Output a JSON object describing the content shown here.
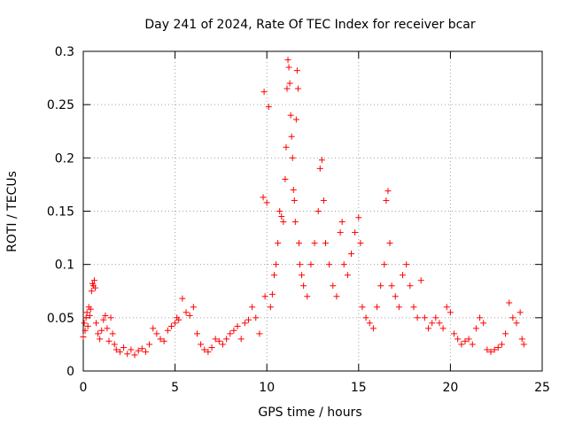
{
  "chart_data": {
    "type": "scatter",
    "title": "Day 241 of 2024, Rate Of TEC Index for receiver bcar",
    "xlabel": "GPS time / hours",
    "ylabel": "ROTI / TECUs",
    "xlim": [
      0,
      25
    ],
    "ylim": [
      0,
      0.3
    ],
    "xticks": [
      0,
      5,
      10,
      15,
      20,
      25
    ],
    "xtick_labels": [
      "0",
      "5",
      "10",
      "15",
      "20",
      "25"
    ],
    "yticks": [
      0,
      0.05,
      0.1,
      0.15,
      0.2,
      0.25,
      0.3
    ],
    "ytick_labels": [
      "0",
      "0.05",
      "0.1",
      "0.15",
      "0.2",
      "0.25",
      "0.3"
    ],
    "grid": true,
    "marker": "+",
    "color": "#ff0000",
    "series": [
      {
        "name": "ROTI",
        "points": [
          [
            0.0,
            0.032
          ],
          [
            0.05,
            0.045
          ],
          [
            0.1,
            0.038
          ],
          [
            0.15,
            0.05
          ],
          [
            0.2,
            0.055
          ],
          [
            0.25,
            0.042
          ],
          [
            0.3,
            0.06
          ],
          [
            0.35,
            0.052
          ],
          [
            0.4,
            0.058
          ],
          [
            0.45,
            0.075
          ],
          [
            0.5,
            0.082
          ],
          [
            0.55,
            0.08
          ],
          [
            0.6,
            0.085
          ],
          [
            0.65,
            0.078
          ],
          [
            0.7,
            0.045
          ],
          [
            0.8,
            0.035
          ],
          [
            0.9,
            0.03
          ],
          [
            1.0,
            0.038
          ],
          [
            1.1,
            0.048
          ],
          [
            1.2,
            0.052
          ],
          [
            1.3,
            0.04
          ],
          [
            1.4,
            0.028
          ],
          [
            1.5,
            0.05
          ],
          [
            1.6,
            0.035
          ],
          [
            1.7,
            0.025
          ],
          [
            1.8,
            0.02
          ],
          [
            2.0,
            0.018
          ],
          [
            2.2,
            0.022
          ],
          [
            2.4,
            0.016
          ],
          [
            2.6,
            0.02
          ],
          [
            2.8,
            0.015
          ],
          [
            3.0,
            0.019
          ],
          [
            3.2,
            0.021
          ],
          [
            3.4,
            0.018
          ],
          [
            3.6,
            0.025
          ],
          [
            3.8,
            0.04
          ],
          [
            4.0,
            0.035
          ],
          [
            4.2,
            0.03
          ],
          [
            4.4,
            0.028
          ],
          [
            4.6,
            0.038
          ],
          [
            4.8,
            0.042
          ],
          [
            5.0,
            0.045
          ],
          [
            5.1,
            0.05
          ],
          [
            5.2,
            0.048
          ],
          [
            5.4,
            0.068
          ],
          [
            5.6,
            0.055
          ],
          [
            5.8,
            0.052
          ],
          [
            6.0,
            0.06
          ],
          [
            6.2,
            0.035
          ],
          [
            6.4,
            0.025
          ],
          [
            6.6,
            0.02
          ],
          [
            6.8,
            0.018
          ],
          [
            7.0,
            0.022
          ],
          [
            7.2,
            0.03
          ],
          [
            7.4,
            0.028
          ],
          [
            7.6,
            0.025
          ],
          [
            7.8,
            0.03
          ],
          [
            8.0,
            0.035
          ],
          [
            8.2,
            0.038
          ],
          [
            8.4,
            0.042
          ],
          [
            8.6,
            0.03
          ],
          [
            8.8,
            0.045
          ],
          [
            9.0,
            0.048
          ],
          [
            9.2,
            0.06
          ],
          [
            9.4,
            0.05
          ],
          [
            9.6,
            0.035
          ],
          [
            9.8,
            0.163
          ],
          [
            9.85,
            0.262
          ],
          [
            9.9,
            0.07
          ],
          [
            10.0,
            0.158
          ],
          [
            10.1,
            0.248
          ],
          [
            10.2,
            0.06
          ],
          [
            10.3,
            0.072
          ],
          [
            10.4,
            0.09
          ],
          [
            10.5,
            0.1
          ],
          [
            10.6,
            0.12
          ],
          [
            10.7,
            0.15
          ],
          [
            10.8,
            0.145
          ],
          [
            10.9,
            0.14
          ],
          [
            11.0,
            0.18
          ],
          [
            11.05,
            0.21
          ],
          [
            11.1,
            0.265
          ],
          [
            11.15,
            0.292
          ],
          [
            11.2,
            0.285
          ],
          [
            11.25,
            0.27
          ],
          [
            11.3,
            0.24
          ],
          [
            11.35,
            0.22
          ],
          [
            11.4,
            0.2
          ],
          [
            11.45,
            0.17
          ],
          [
            11.5,
            0.16
          ],
          [
            11.55,
            0.14
          ],
          [
            11.6,
            0.236
          ],
          [
            11.65,
            0.282
          ],
          [
            11.7,
            0.265
          ],
          [
            11.75,
            0.12
          ],
          [
            11.8,
            0.1
          ],
          [
            11.9,
            0.09
          ],
          [
            12.0,
            0.08
          ],
          [
            12.2,
            0.07
          ],
          [
            12.4,
            0.1
          ],
          [
            12.6,
            0.12
          ],
          [
            12.8,
            0.15
          ],
          [
            12.9,
            0.19
          ],
          [
            13.0,
            0.198
          ],
          [
            13.1,
            0.16
          ],
          [
            13.2,
            0.12
          ],
          [
            13.4,
            0.1
          ],
          [
            13.6,
            0.08
          ],
          [
            13.8,
            0.07
          ],
          [
            14.0,
            0.13
          ],
          [
            14.1,
            0.14
          ],
          [
            14.2,
            0.1
          ],
          [
            14.4,
            0.09
          ],
          [
            14.6,
            0.11
          ],
          [
            14.8,
            0.13
          ],
          [
            15.0,
            0.144
          ],
          [
            15.1,
            0.12
          ],
          [
            15.2,
            0.06
          ],
          [
            15.4,
            0.05
          ],
          [
            15.6,
            0.045
          ],
          [
            15.8,
            0.04
          ],
          [
            16.0,
            0.06
          ],
          [
            16.2,
            0.08
          ],
          [
            16.4,
            0.1
          ],
          [
            16.5,
            0.16
          ],
          [
            16.6,
            0.169
          ],
          [
            16.7,
            0.12
          ],
          [
            16.8,
            0.08
          ],
          [
            17.0,
            0.07
          ],
          [
            17.2,
            0.06
          ],
          [
            17.4,
            0.09
          ],
          [
            17.6,
            0.1
          ],
          [
            17.8,
            0.08
          ],
          [
            18.0,
            0.06
          ],
          [
            18.2,
            0.05
          ],
          [
            18.4,
            0.085
          ],
          [
            18.6,
            0.05
          ],
          [
            18.8,
            0.04
          ],
          [
            19.0,
            0.045
          ],
          [
            19.2,
            0.05
          ],
          [
            19.4,
            0.045
          ],
          [
            19.6,
            0.04
          ],
          [
            19.8,
            0.06
          ],
          [
            20.0,
            0.055
          ],
          [
            20.2,
            0.035
          ],
          [
            20.4,
            0.03
          ],
          [
            20.6,
            0.025
          ],
          [
            20.8,
            0.028
          ],
          [
            21.0,
            0.03
          ],
          [
            21.2,
            0.025
          ],
          [
            21.4,
            0.04
          ],
          [
            21.6,
            0.05
          ],
          [
            21.8,
            0.045
          ],
          [
            22.0,
            0.02
          ],
          [
            22.2,
            0.018
          ],
          [
            22.4,
            0.02
          ],
          [
            22.6,
            0.022
          ],
          [
            22.8,
            0.025
          ],
          [
            23.0,
            0.035
          ],
          [
            23.2,
            0.064
          ],
          [
            23.4,
            0.05
          ],
          [
            23.6,
            0.045
          ],
          [
            23.8,
            0.055
          ],
          [
            23.9,
            0.03
          ],
          [
            24.0,
            0.025
          ]
        ]
      }
    ]
  }
}
